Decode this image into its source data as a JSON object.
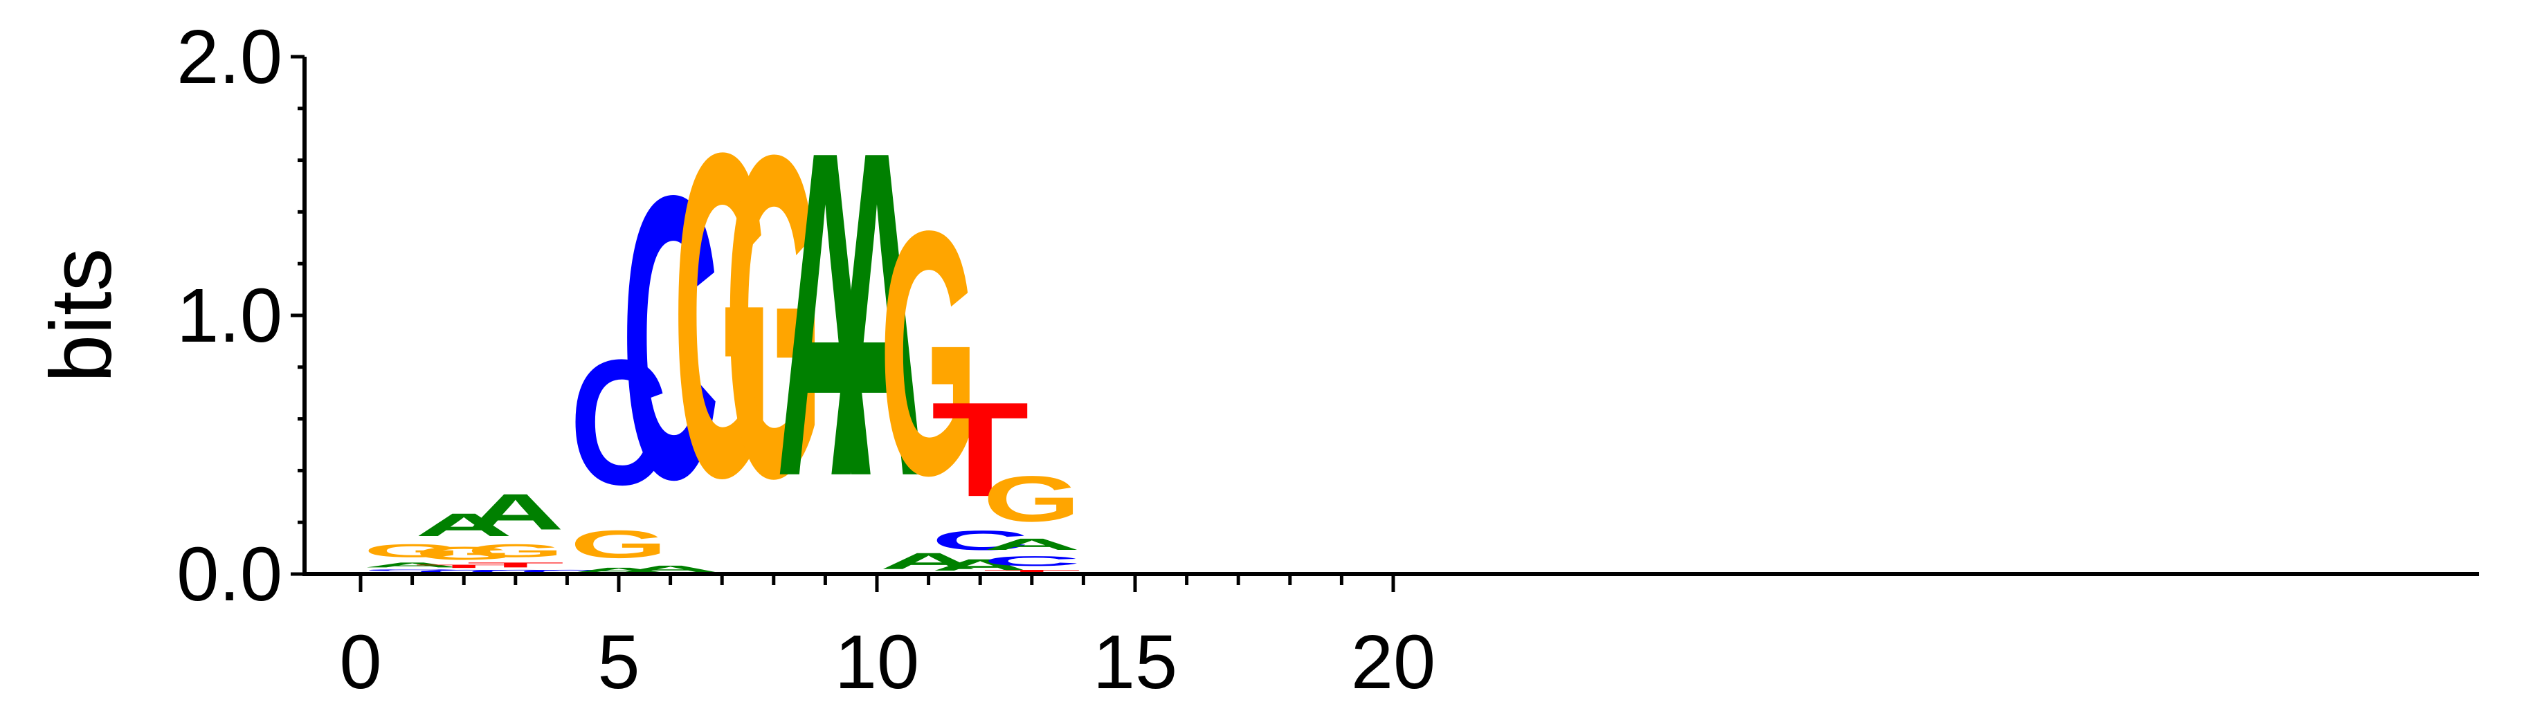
{
  "chart_data": {
    "type": "sequence-logo",
    "ylabel": "bits",
    "ylim": [
      0,
      2
    ],
    "xlim": [
      -0.5,
      20.5
    ],
    "y_ticks": [
      {
        "value": 0,
        "label": "0.0"
      },
      {
        "value": 1,
        "label": "1.0"
      },
      {
        "value": 2,
        "label": "2.0"
      }
    ],
    "x_ticks": [
      {
        "value": 0,
        "label": "0"
      },
      {
        "value": 5,
        "label": "5"
      },
      {
        "value": 10,
        "label": "10"
      },
      {
        "value": 15,
        "label": "15"
      },
      {
        "value": 20,
        "label": "20"
      }
    ],
    "colors": {
      "A": "#008000",
      "C": "#0000ff",
      "G": "#ffa500",
      "T": "#ff0000"
    },
    "positions": [
      {
        "x": 1,
        "letters": [
          {
            "base": "T",
            "height": 0.01
          },
          {
            "base": "C",
            "height": 0.01
          },
          {
            "base": "A",
            "height": 0.03
          },
          {
            "base": "G",
            "height": 0.08
          }
        ]
      },
      {
        "x": 2,
        "letters": [
          {
            "base": "C",
            "height": 0.02
          },
          {
            "base": "T",
            "height": 0.02
          },
          {
            "base": "G",
            "height": 0.08
          },
          {
            "base": "A",
            "height": 0.14
          }
        ]
      },
      {
        "x": 3,
        "letters": [
          {
            "base": "C",
            "height": 0.02
          },
          {
            "base": "T",
            "height": 0.03
          },
          {
            "base": "G",
            "height": 0.08
          },
          {
            "base": "A",
            "height": 0.22
          }
        ]
      },
      {
        "x": 4,
        "letters": [
          {
            "base": "C",
            "height": 0.02
          }
        ]
      },
      {
        "x": 5,
        "letters": [
          {
            "base": "A",
            "height": 0.03
          },
          {
            "base": "G",
            "height": 0.17
          },
          {
            "base": "C",
            "height": 0.77
          }
        ]
      },
      {
        "x": 6,
        "letters": [
          {
            "base": "A",
            "height": 0.04
          },
          {
            "base": "C",
            "height": 1.74
          }
        ]
      },
      {
        "x": 7,
        "letters": [
          {
            "base": "G",
            "height": 1.99
          }
        ]
      },
      {
        "x": 8,
        "letters": [
          {
            "base": "G",
            "height": 1.98
          }
        ]
      },
      {
        "x": 9,
        "letters": [
          {
            "base": "A",
            "height": 2.0
          }
        ]
      },
      {
        "x": 10,
        "letters": [
          {
            "base": "A",
            "height": 2.0
          }
        ]
      },
      {
        "x": 11,
        "letters": [
          {
            "base": "A",
            "height": 0.1
          },
          {
            "base": "G",
            "height": 1.5
          }
        ]
      },
      {
        "x": 12,
        "letters": [
          {
            "base": "A",
            "height": 0.07
          },
          {
            "base": "C",
            "height": 0.12
          },
          {
            "base": "T",
            "height": 0.58
          }
        ]
      },
      {
        "x": 13,
        "letters": [
          {
            "base": "T",
            "height": 0.02
          },
          {
            "base": "C",
            "height": 0.06
          },
          {
            "base": "A",
            "height": 0.07
          },
          {
            "base": "G",
            "height": 0.28
          }
        ]
      }
    ]
  }
}
